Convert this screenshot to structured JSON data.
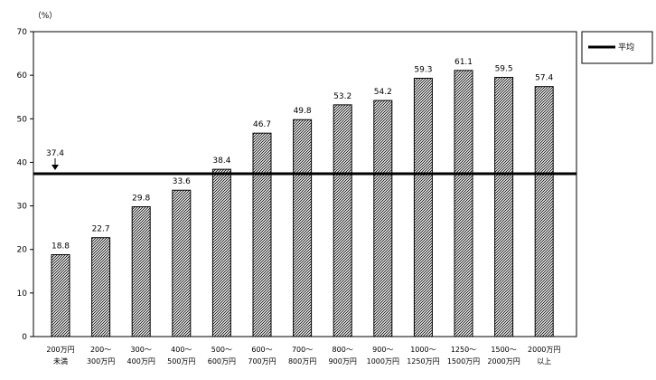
{
  "chart_data": {
    "type": "bar",
    "unit_label": "（%）",
    "categories": [
      [
        "200万円",
        "未満"
      ],
      [
        "200～",
        "300万円"
      ],
      [
        "300～",
        "400万円"
      ],
      [
        "400～",
        "500万円"
      ],
      [
        "500～",
        "600万円"
      ],
      [
        "600～",
        "700万円"
      ],
      [
        "700～",
        "800万円"
      ],
      [
        "800～",
        "900万円"
      ],
      [
        "900～",
        "1000万円"
      ],
      [
        "1000～",
        "1250万円"
      ],
      [
        "1250～",
        "1500万円"
      ],
      [
        "1500～",
        "2000万円"
      ],
      [
        "2000万円",
        "以上"
      ]
    ],
    "values": [
      18.8,
      22.7,
      29.8,
      33.6,
      38.4,
      46.7,
      49.8,
      53.2,
      54.2,
      59.3,
      61.1,
      59.5,
      57.4
    ],
    "value_labels": [
      "18.8",
      "22.7",
      "29.8",
      "33.6",
      "38.4",
      "46.7",
      "49.8",
      "53.2",
      "54.2",
      "59.3",
      "61.1",
      "59.5",
      "57.4"
    ],
    "ylim": [
      0,
      70
    ],
    "yticks": [
      "0",
      "10",
      "20",
      "30",
      "40",
      "50",
      "60",
      "70"
    ],
    "reference_line": {
      "name": "平均",
      "value": 37.4,
      "label": "37.4"
    },
    "legend": {
      "placement": "top-right",
      "label": "平均"
    },
    "grid": false,
    "colors": {
      "bar_fill": "#ffffff",
      "bar_pattern": "#000000",
      "line": "#000000"
    }
  }
}
